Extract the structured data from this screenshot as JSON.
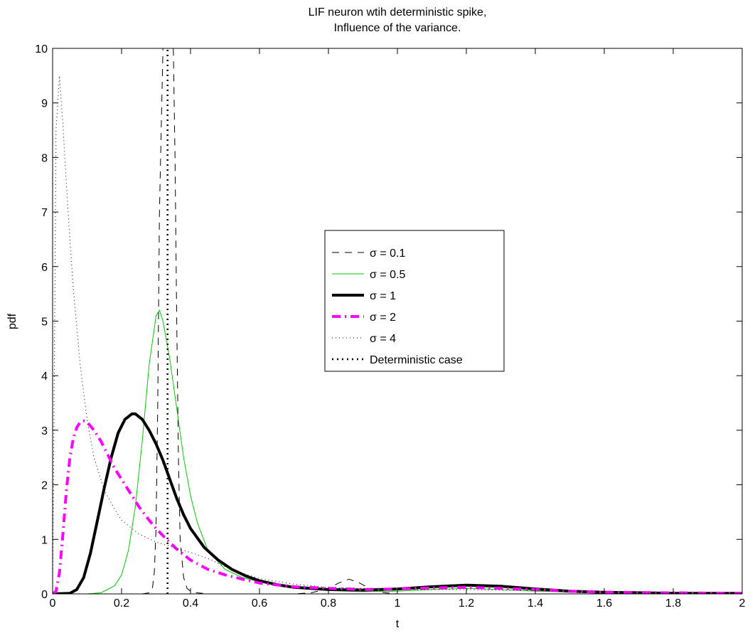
{
  "chart_data": {
    "type": "line",
    "title_lines": [
      "LIF neuron wtih deterministic spike,",
      "Influence of the variance."
    ],
    "xlabel": "t",
    "ylabel": "pdf",
    "xlim": [
      0,
      2
    ],
    "ylim": [
      0,
      10
    ],
    "xticks": [
      0,
      0.2,
      0.4,
      0.6,
      0.8,
      1,
      1.2,
      1.4,
      1.6,
      1.8,
      2
    ],
    "xtick_labels": [
      "0",
      "0.2",
      "0.4",
      "0.6",
      "0.8",
      "1",
      "1.2",
      "1.4",
      "1.6",
      "1.8",
      "2"
    ],
    "yticks": [
      0,
      1,
      2,
      3,
      4,
      5,
      6,
      7,
      8,
      9,
      10
    ],
    "ytick_labels": [
      "0",
      "1",
      "2",
      "3",
      "4",
      "5",
      "6",
      "7",
      "8",
      "9",
      "10"
    ],
    "grid": false,
    "legend_position": "center-right",
    "series": [
      {
        "name": "σ = 0.1",
        "color": "#000000",
        "style": "dashed",
        "x": [
          0,
          0.26,
          0.28,
          0.29,
          0.295,
          0.3,
          0.305,
          0.31,
          0.32,
          0.33,
          0.34,
          0.35,
          0.355,
          0.36,
          0.365,
          0.37,
          0.38,
          0.39,
          0.4,
          0.42,
          0.45,
          0.5,
          0.6,
          0.7,
          0.75,
          0.8,
          0.83,
          0.86,
          0.89,
          0.92,
          0.95,
          1.0,
          1.2,
          1.5,
          2.0
        ],
        "y": [
          0,
          0,
          0.02,
          0.12,
          0.4,
          1.2,
          3.5,
          7.0,
          10,
          10,
          10,
          10,
          8.0,
          5.0,
          2.5,
          1.0,
          0.3,
          0.1,
          0.05,
          0.02,
          0,
          0,
          0,
          0,
          0.02,
          0.1,
          0.2,
          0.27,
          0.2,
          0.1,
          0.03,
          0,
          0,
          0,
          0
        ]
      },
      {
        "name": "σ = 0.5",
        "color": "#00cc00",
        "style": "solid",
        "x": [
          0,
          0.1,
          0.14,
          0.18,
          0.2,
          0.22,
          0.24,
          0.26,
          0.28,
          0.3,
          0.31,
          0.32,
          0.34,
          0.36,
          0.38,
          0.4,
          0.42,
          0.45,
          0.5,
          0.55,
          0.6,
          0.7,
          0.8,
          0.9,
          1.0,
          1.1,
          1.2,
          1.3,
          1.4,
          1.6,
          1.8,
          2.0
        ],
        "y": [
          0,
          0,
          0.02,
          0.15,
          0.35,
          0.8,
          1.6,
          2.8,
          4.2,
          5.1,
          5.2,
          5.0,
          4.3,
          3.4,
          2.5,
          1.8,
          1.3,
          0.8,
          0.45,
          0.3,
          0.22,
          0.12,
          0.06,
          0.04,
          0.05,
          0.08,
          0.1,
          0.08,
          0.05,
          0.02,
          0.01,
          0
        ]
      },
      {
        "name": "σ = 1",
        "color": "#000000",
        "style": "solid-thick",
        "x": [
          0,
          0.05,
          0.07,
          0.09,
          0.11,
          0.13,
          0.15,
          0.17,
          0.19,
          0.21,
          0.23,
          0.24,
          0.26,
          0.28,
          0.3,
          0.32,
          0.34,
          0.36,
          0.38,
          0.4,
          0.44,
          0.48,
          0.52,
          0.56,
          0.6,
          0.65,
          0.7,
          0.8,
          0.9,
          1.0,
          1.1,
          1.2,
          1.3,
          1.4,
          1.5,
          1.6,
          1.8,
          2.0
        ],
        "y": [
          0,
          0.01,
          0.08,
          0.3,
          0.75,
          1.35,
          1.95,
          2.5,
          2.95,
          3.2,
          3.3,
          3.3,
          3.2,
          3.0,
          2.75,
          2.45,
          2.1,
          1.75,
          1.45,
          1.2,
          0.85,
          0.62,
          0.45,
          0.33,
          0.24,
          0.17,
          0.12,
          0.08,
          0.07,
          0.09,
          0.13,
          0.16,
          0.14,
          0.09,
          0.05,
          0.03,
          0.01,
          0.01
        ]
      },
      {
        "name": "σ = 2",
        "color": "#ff00ff",
        "style": "dashdot-thick",
        "x": [
          0,
          0.01,
          0.02,
          0.03,
          0.04,
          0.05,
          0.06,
          0.07,
          0.08,
          0.09,
          0.1,
          0.12,
          0.14,
          0.16,
          0.18,
          0.2,
          0.22,
          0.25,
          0.28,
          0.3,
          0.33,
          0.36,
          0.4,
          0.45,
          0.5,
          0.55,
          0.6,
          0.7,
          0.8,
          0.9,
          1.0,
          1.1,
          1.2,
          1.3,
          1.4,
          1.5,
          1.6,
          1.8,
          2.0
        ],
        "y": [
          0,
          0.05,
          0.4,
          1.1,
          1.9,
          2.5,
          2.85,
          3.05,
          3.15,
          3.17,
          3.15,
          3.0,
          2.8,
          2.55,
          2.3,
          2.1,
          1.9,
          1.6,
          1.35,
          1.2,
          1.0,
          0.82,
          0.62,
          0.45,
          0.35,
          0.27,
          0.2,
          0.13,
          0.1,
          0.08,
          0.09,
          0.11,
          0.12,
          0.1,
          0.08,
          0.05,
          0.03,
          0.02,
          0.01
        ]
      },
      {
        "name": "σ = 4",
        "color": "#000000",
        "style": "dotted-fine",
        "x": [
          0,
          0.005,
          0.01,
          0.02,
          0.03,
          0.04,
          0.05,
          0.06,
          0.08,
          0.1,
          0.12,
          0.15,
          0.18,
          0.2,
          0.25,
          0.3,
          0.35,
          0.4,
          0.45,
          0.5,
          0.55,
          0.6,
          0.7,
          0.8,
          0.9,
          1.0,
          1.2,
          1.4,
          1.6,
          1.8,
          2.0
        ],
        "y": [
          0,
          4.0,
          8.5,
          9.5,
          8.6,
          7.5,
          6.5,
          5.6,
          4.2,
          3.2,
          2.5,
          1.9,
          1.55,
          1.35,
          1.1,
          0.95,
          0.85,
          0.76,
          0.65,
          0.5,
          0.38,
          0.28,
          0.18,
          0.12,
          0.1,
          0.08,
          0.08,
          0.06,
          0.04,
          0.02,
          0.01
        ]
      },
      {
        "name": "Deterministic case",
        "color": "#000000",
        "style": "dotted-thick",
        "x": [
          0.3333,
          0.3333
        ],
        "y": [
          0,
          10
        ]
      }
    ]
  }
}
